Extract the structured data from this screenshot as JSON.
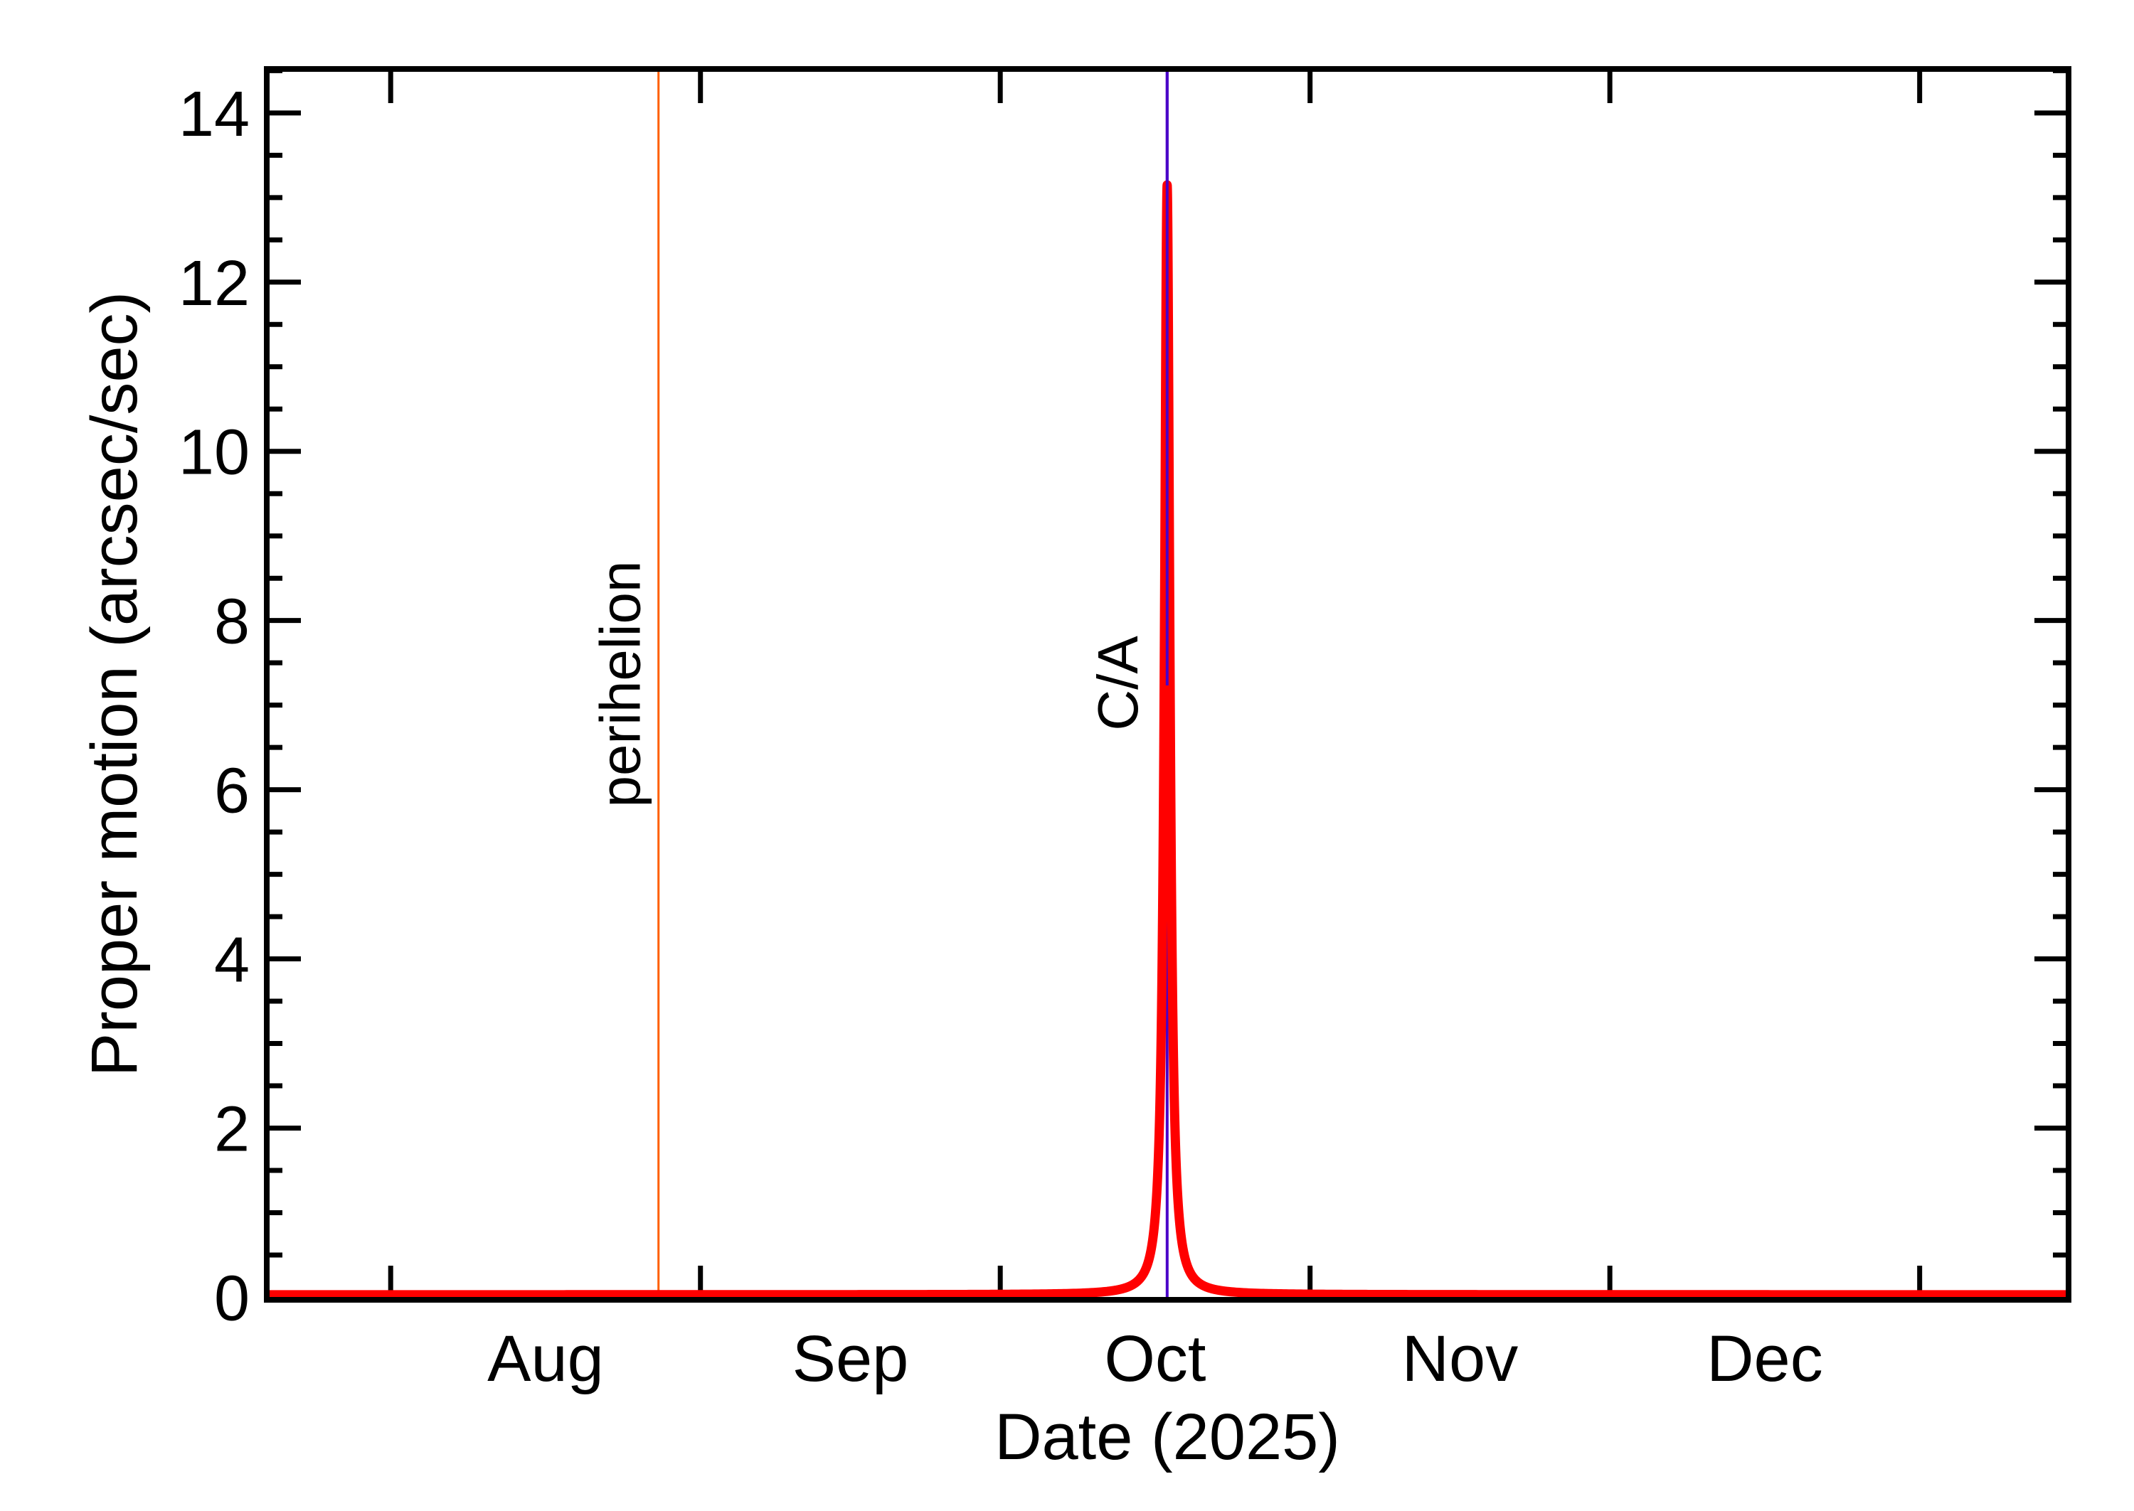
{
  "chart_data": {
    "type": "line",
    "title": "",
    "xlabel": "Date (2025)",
    "ylabel": "Proper motion (arcsec/sec)",
    "x_unit": "day of 2025 counted from Jul 1 (Jul 1 = 0)",
    "xlim": [
      18.6,
      198.9
    ],
    "ylim": [
      -0.03,
      14.52
    ],
    "grid": false,
    "legend": null,
    "x_month_ticks": [
      {
        "label": "",
        "day": 31,
        "name": "Aug 1"
      },
      {
        "label": "",
        "day": 62,
        "name": "Sep 1"
      },
      {
        "label": "",
        "day": 92,
        "name": "Oct 1"
      },
      {
        "label": "",
        "day": 123,
        "name": "Nov 1"
      },
      {
        "label": "",
        "day": 153,
        "name": "Dec 1"
      },
      {
        "label": "",
        "day": 184,
        "name": "Jan 1"
      }
    ],
    "x_month_labels": [
      {
        "label": "Aug",
        "day": 46.5
      },
      {
        "label": "Sep",
        "day": 77
      },
      {
        "label": "Oct",
        "day": 107.5
      },
      {
        "label": "Nov",
        "day": 138
      },
      {
        "label": "Dec",
        "day": 168.5
      }
    ],
    "y_major_ticks": [
      0,
      2,
      4,
      6,
      8,
      10,
      12,
      14
    ],
    "y_tick_labels": [
      "0",
      "2",
      "4",
      "6",
      "8",
      "10",
      "12",
      "14"
    ],
    "y_minor_step": 0.5,
    "series": [
      {
        "name": "Proper motion",
        "color": "#ff0000",
        "model": {
          "kind": "lorentzian",
          "peak_day": 108.7,
          "amplitude": 13.15,
          "gamma_days": 0.33,
          "baseline": 0.03
        },
        "points": [
          {
            "date": "Jul 20",
            "value": 0.05
          },
          {
            "date": "Aug 1",
            "value": 0.05
          },
          {
            "date": "Aug 28",
            "value": 0.04
          },
          {
            "date": "Sep 15",
            "value": 0.03
          },
          {
            "date": "Oct 1",
            "value": 0.04
          },
          {
            "date": "Oct 12",
            "value": 0.1
          },
          {
            "date": "Oct 15",
            "value": 0.3
          },
          {
            "date": "Oct 16.9",
            "value": 1.9
          },
          {
            "date": "Oct 17.4",
            "value": 6.9
          },
          {
            "date": "Oct 17.7",
            "value": 13.15
          },
          {
            "date": "Oct 18.0",
            "value": 6.9
          },
          {
            "date": "Oct 18.5",
            "value": 1.9
          },
          {
            "date": "Oct 20",
            "value": 0.3
          },
          {
            "date": "Oct 23",
            "value": 0.1
          },
          {
            "date": "Nov 1",
            "value": 0.02
          },
          {
            "date": "Dec 1",
            "value": 0.03
          },
          {
            "date": "Jan 15",
            "value": 0.04
          }
        ]
      }
    ],
    "annotations": [
      {
        "label": "perihelion",
        "type": "vline",
        "day": 57.8,
        "date": "Aug 27.8",
        "color": "#ff5f00"
      },
      {
        "label": "C/A",
        "type": "vline",
        "day": 108.7,
        "date": "Oct 17.7",
        "color": "#4a00c8"
      }
    ]
  },
  "labels": {
    "xlabel": "Date (2025)",
    "ylabel": "Proper motion (arcsec/sec)",
    "perihelion": "perihelion",
    "ca": "C/A"
  },
  "colors": {
    "axis": "#000000",
    "curve": "#ff0000",
    "perihelion": "#ff5f00",
    "ca": "#4a00c8"
  }
}
